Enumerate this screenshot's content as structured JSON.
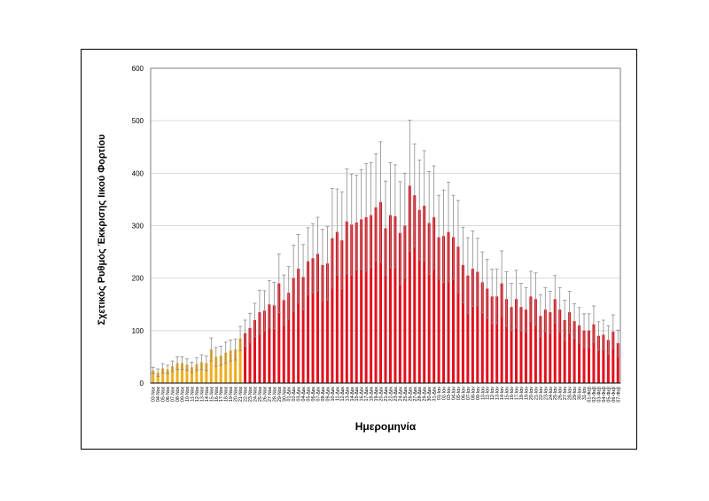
{
  "chart_data": {
    "type": "bar",
    "title": "",
    "xlabel": "Ημερομηνία",
    "ylabel": "Σχετικός Ρυθμός Έκκρισης Ιικού Φορτίου",
    "ylim": [
      0,
      600
    ],
    "yticks": [
      0,
      100,
      200,
      300,
      400,
      500,
      600
    ],
    "grid": true,
    "colors": {
      "early": "#f0ad1e",
      "main": "#e3101b",
      "error": "#8c8c8c",
      "grid": "#d9d9d9"
    },
    "categories": [
      "03-Νοε",
      "04-Νοε",
      "05-Νοε",
      "06-Νοε",
      "07-Νοε",
      "08-Νοε",
      "09-Νοε",
      "10-Νοε",
      "11-Νοε",
      "12-Νοε",
      "13-Νοε",
      "14-Νοε",
      "15-Νοε",
      "16-Νοε",
      "17-Νοε",
      "18-Νοε",
      "19-Νοε",
      "20-Νοε",
      "21-Νοε",
      "22-Νοε",
      "23-Νοε",
      "24-Νοε",
      "25-Νοε",
      "26-Νοε",
      "27-Νοε",
      "28-Νοε",
      "29-Νοε",
      "30-Νοε",
      "01-Δεκ",
      "02-Δεκ",
      "03-Δεκ",
      "04-Δεκ",
      "05-Δεκ",
      "06-Δεκ",
      "07-Δεκ",
      "08-Δεκ",
      "09-Δεκ",
      "10-Δεκ",
      "11-Δεκ",
      "12-Δεκ",
      "13-Δεκ",
      "14-Δεκ",
      "15-Δεκ",
      "16-Δεκ",
      "17-Δεκ",
      "18-Δεκ",
      "19-Δεκ",
      "20-Δεκ",
      "21-Δεκ",
      "22-Δεκ",
      "23-Δεκ",
      "24-Δεκ",
      "25-Δεκ",
      "26-Δεκ",
      "27-Δεκ",
      "28-Δεκ",
      "29-Δεκ",
      "30-Δεκ",
      "31-Δεκ",
      "01-Ιαν",
      "02-Ιαν",
      "03-Ιαν",
      "04-Ιαν",
      "05-Ιαν",
      "06-Ιαν",
      "07-Ιαν",
      "08-Ιαν",
      "09-Ιαν",
      "10-Ιαν",
      "11-Ιαν",
      "12-Ιαν",
      "13-Ιαν",
      "14-Ιαν",
      "15-Ιαν",
      "16-Ιαν",
      "17-Ιαν",
      "18-Ιαν",
      "19-Ιαν",
      "20-Ιαν",
      "21-Ιαν",
      "22-Ιαν",
      "23-Ιαν",
      "24-Ιαν",
      "25-Ιαν",
      "26-Ιαν",
      "27-Ιαν",
      "28-Ιαν",
      "29-Ιαν",
      "30-Ιαν",
      "31-Ιαν",
      "01-Φεβ",
      "02-Φεβ",
      "03-Φεβ",
      "04-Φεβ",
      "05-Φεβ",
      "06-Φεβ",
      "07-Φεβ"
    ],
    "early_count": 19,
    "values": [
      24,
      20,
      28,
      26,
      32,
      38,
      38,
      35,
      30,
      36,
      40,
      38,
      64,
      50,
      52,
      58,
      62,
      64,
      85,
      95,
      105,
      120,
      135,
      138,
      150,
      148,
      190,
      158,
      172,
      200,
      218,
      202,
      232,
      238,
      246,
      225,
      228,
      276,
      288,
      272,
      308,
      302,
      306,
      312,
      316,
      320,
      335,
      345,
      295,
      320,
      318,
      286,
      300,
      376,
      358,
      330,
      338,
      305,
      316,
      278,
      280,
      288,
      278,
      260,
      225,
      205,
      218,
      212,
      192,
      180,
      165,
      165,
      190,
      160,
      145,
      160,
      145,
      140,
      165,
      160,
      128,
      140,
      135,
      160,
      140,
      120,
      135,
      118,
      110,
      100,
      100,
      112,
      90,
      92,
      82,
      98,
      76
    ],
    "errors": [
      6,
      7,
      9,
      8,
      10,
      12,
      12,
      11,
      10,
      12,
      14,
      14,
      22,
      18,
      18,
      20,
      20,
      20,
      23,
      25,
      28,
      32,
      42,
      38,
      45,
      44,
      56,
      48,
      50,
      63,
      65,
      62,
      64,
      66,
      70,
      68,
      70,
      95,
      82,
      92,
      100,
      96,
      90,
      95,
      102,
      100,
      102,
      115,
      90,
      100,
      98,
      98,
      100,
      125,
      98,
      95,
      105,
      98,
      98,
      80,
      88,
      95,
      80,
      88,
      72,
      72,
      72,
      64,
      58,
      56,
      52,
      52,
      62,
      52,
      45,
      55,
      45,
      42,
      48,
      50,
      40,
      42,
      40,
      45,
      42,
      38,
      40,
      33,
      34,
      32,
      32,
      35,
      27,
      28,
      27,
      32,
      25
    ]
  }
}
